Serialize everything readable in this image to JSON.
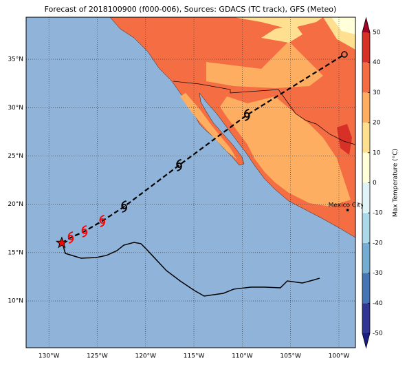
{
  "map": {
    "title": "Forecast of 2018100900 (f000-006), Sources: GDACS (TC track), GFS (Meteo)",
    "lon_range": [
      -132.36,
      -98.29
    ],
    "lat_range": [
      5.16,
      39.35
    ],
    "ocean_color": "#8fb3d9",
    "grid": true,
    "lon_ticks": [
      {
        "value": -130,
        "label": "130°W"
      },
      {
        "value": -125,
        "label": "125°W"
      },
      {
        "value": -120,
        "label": "120°W"
      },
      {
        "value": -115,
        "label": "115°W"
      },
      {
        "value": -110,
        "label": "110°W"
      },
      {
        "value": -105,
        "label": "105°W"
      },
      {
        "value": -100,
        "label": "100°W"
      }
    ],
    "lat_ticks": [
      {
        "value": 10,
        "label": "10°N"
      },
      {
        "value": 15,
        "label": "15°N"
      },
      {
        "value": 20,
        "label": "20°N"
      },
      {
        "value": 25,
        "label": "25°N"
      },
      {
        "value": 30,
        "label": "30°N"
      },
      {
        "value": 35,
        "label": "35°N"
      }
    ],
    "track": {
      "color": "#000000",
      "points": [
        {
          "lon": -128.67,
          "lat": 16.0,
          "symbol": "star",
          "color": "#ff0000"
        },
        {
          "lon": -127.74,
          "lat": 16.56,
          "symbol": "storm",
          "color": "#ff0000"
        },
        {
          "lon": -126.32,
          "lat": 17.2,
          "symbol": "storm",
          "color": "#ff0000"
        },
        {
          "lon": -124.48,
          "lat": 18.27,
          "symbol": "storm",
          "color": "#ff0000"
        },
        {
          "lon": -122.21,
          "lat": 19.76,
          "symbol": "storm",
          "color": "#000000"
        },
        {
          "lon": -116.53,
          "lat": 24.04,
          "symbol": "storm",
          "color": "#000000"
        },
        {
          "lon": -109.51,
          "lat": 29.24,
          "symbol": "storm",
          "color": "#000000"
        },
        {
          "lon": -99.43,
          "lat": 35.5,
          "symbol": "circle",
          "color": "#000000"
        }
      ]
    },
    "other_track": {
      "color": "#000000",
      "lon": [
        -128.52,
        -128.31,
        -126.67,
        -125.11,
        -124.04,
        -122.97,
        -122.26,
        -121.19,
        -120.48,
        -119.91,
        -118.85,
        -117.85,
        -116.43,
        -114.94,
        -113.94,
        -111.95,
        -110.89,
        -109.11,
        -107.69,
        -106.05,
        -105.34,
        -103.78,
        -102.71,
        -102.0
      ],
      "lat": [
        15.7,
        14.92,
        14.42,
        14.49,
        14.71,
        15.2,
        15.77,
        16.06,
        15.92,
        15.35,
        14.21,
        13.14,
        12.07,
        11.07,
        10.5,
        10.79,
        11.22,
        11.43,
        11.43,
        11.36,
        12.07,
        11.86,
        12.14,
        12.35
      ]
    },
    "city": {
      "name": "Mexico City",
      "lon": -99.1,
      "lat": 19.4
    },
    "colorbar": {
      "label": "Max Temperature (°C)",
      "range": [
        -50,
        50
      ],
      "ticks": [
        -50,
        -40,
        -30,
        -20,
        -10,
        0,
        10,
        20,
        30,
        40,
        50
      ],
      "colors": [
        "#313695",
        "#4575b4",
        "#74add1",
        "#abd9e9",
        "#e0f3f8",
        "#ffffd9",
        "#fee090",
        "#fdae61",
        "#f46d43",
        "#d73027"
      ],
      "extend_colors": [
        "#1a1f80",
        "#a50026"
      ]
    }
  }
}
